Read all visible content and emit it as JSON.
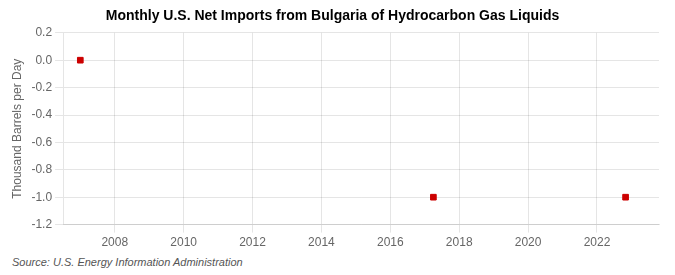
{
  "chart_data": {
    "type": "scatter",
    "title": "Monthly U.S. Net Imports from Bulgaria of Hydrocarbon Gas Liquids",
    "ylabel": "Thousand Barrels per Day",
    "annotations": [
      "Source: U.S. Energy Information Administration"
    ],
    "x": [
      2007.0,
      2017.25,
      2022.83
    ],
    "values": [
      0.0,
      -1.0,
      -1.0
    ],
    "color": "#cc0000",
    "marker": "square",
    "xlim": [
      2006.5,
      2023.8
    ],
    "ylim": [
      -1.2,
      0.2
    ],
    "xticks": [
      2008,
      2010,
      2012,
      2014,
      2016,
      2018,
      2020,
      2022
    ],
    "yticks": [
      -1.2,
      {
        "value": -1.0,
        "label": "-1.0"
      },
      -0.8,
      -0.6,
      -0.4,
      -0.2,
      {
        "value": 0.0,
        "label": "0.0"
      },
      0.2
    ],
    "grid": true
  }
}
